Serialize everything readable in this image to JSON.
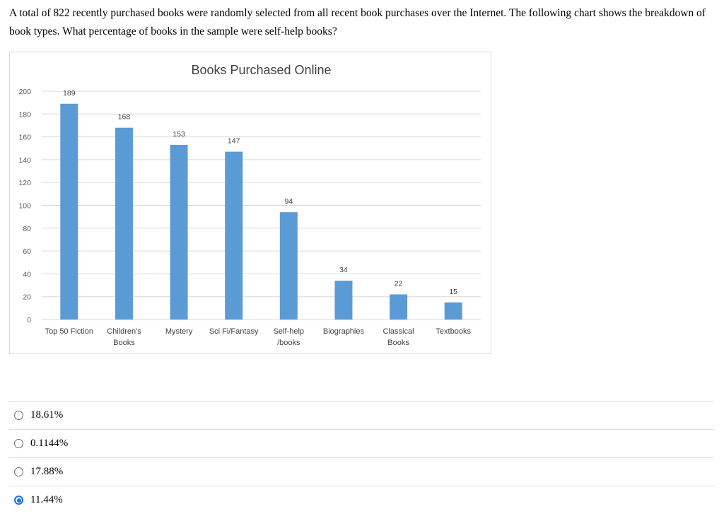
{
  "question": {
    "text": "A total of 822 recently purchased books were randomly selected from all recent book purchases over the Internet. The following chart shows the breakdown of book types. What percentage of books in the sample were self-help books?"
  },
  "chart_data": {
    "type": "bar",
    "title": "Books Purchased Online",
    "categories": [
      [
        "Top 50 Fiction"
      ],
      [
        "Children's",
        "Books"
      ],
      [
        "Mystery"
      ],
      [
        "Sci Fi/Fantasy"
      ],
      [
        "Self-help",
        "/books"
      ],
      [
        "Biographies"
      ],
      [
        "Classical",
        "Books"
      ],
      [
        "Textbooks"
      ]
    ],
    "values": [
      189,
      168,
      153,
      147,
      94,
      34,
      22,
      15
    ],
    "ylim": [
      0,
      200
    ],
    "yticks": [
      0,
      20,
      40,
      60,
      80,
      100,
      120,
      140,
      160,
      180,
      200
    ],
    "grid": true,
    "bar_color": "#5b9bd5"
  },
  "options": [
    {
      "label": "18.61%",
      "selected": false
    },
    {
      "label": "0.1144%",
      "selected": false
    },
    {
      "label": "17.88%",
      "selected": false
    },
    {
      "label": "11.44%",
      "selected": true
    }
  ]
}
